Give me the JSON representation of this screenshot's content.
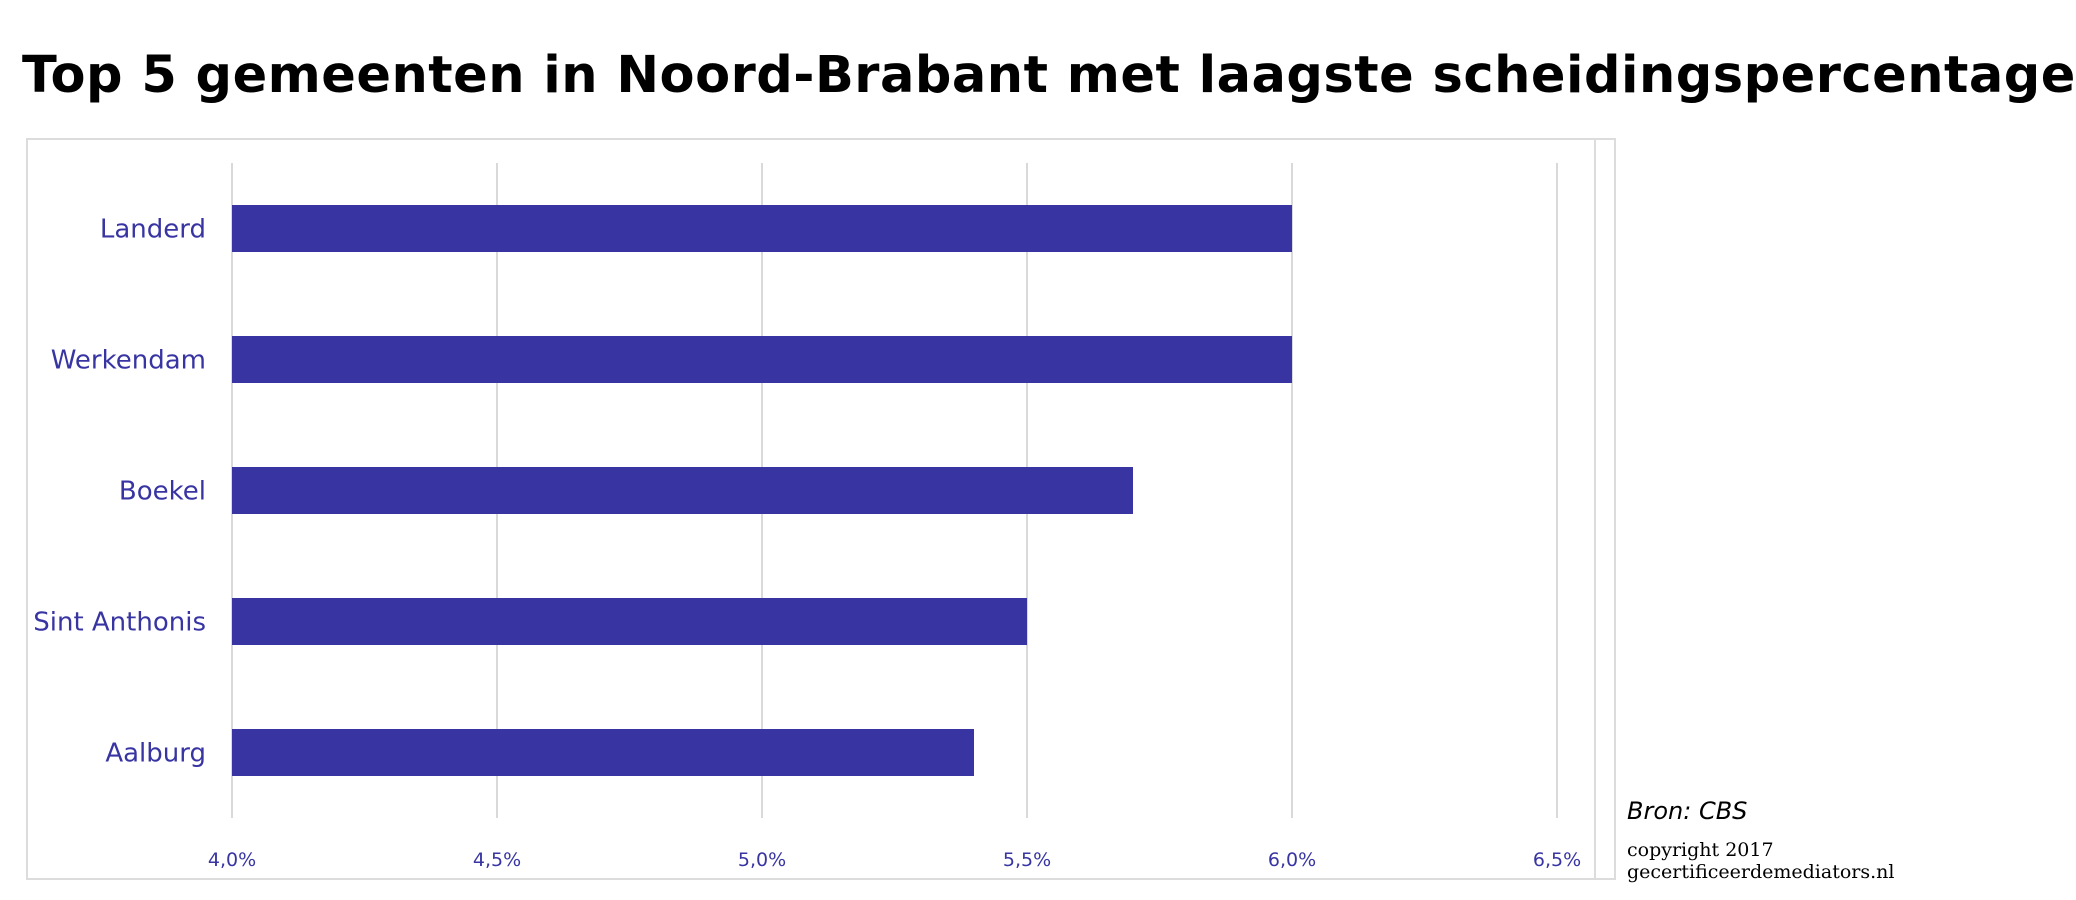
{
  "title": "Top 5 gemeenten in Noord-Brabant met laagste scheidingspercentage",
  "source": "Bron: CBS",
  "copyright_line1": "copyright 2017",
  "copyright_line2": "gecertificeerdemediators.nl",
  "colors": {
    "bar": "#3835a3",
    "label": "#3835a3",
    "grid": "#d9d9d9"
  },
  "chart_data": {
    "type": "bar",
    "orientation": "horizontal",
    "categories": [
      "Landerd",
      "Werkendam",
      "Boekel",
      "Sint Anthonis",
      "Aalburg"
    ],
    "values": [
      6.0,
      6.0,
      5.7,
      5.5,
      5.4
    ],
    "unit": "%",
    "xlim": [
      4.0,
      6.5
    ],
    "xticks": [
      4.0,
      4.5,
      5.0,
      5.5,
      6.0,
      6.5
    ],
    "xtick_labels": [
      "4,0%",
      "4,5%",
      "5,0%",
      "5,5%",
      "6,0%",
      "6,5%"
    ],
    "grid": "vertical"
  }
}
